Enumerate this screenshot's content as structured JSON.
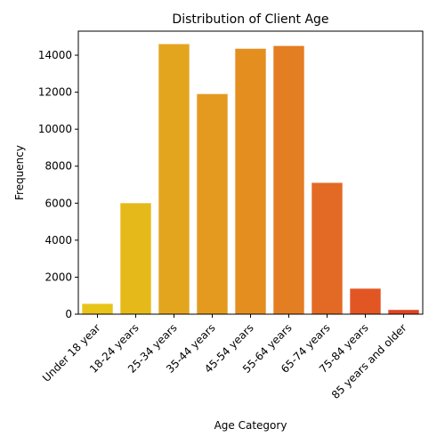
{
  "chart_data": {
    "type": "bar",
    "title": "Distribution of Client Age",
    "xlabel": "Age Category",
    "ylabel": "Frequency",
    "categories": [
      "Under 18 year",
      "18-24 years",
      "25-34 years",
      "35-44 years",
      "45-54 years",
      "55-64 years",
      "65-74 years",
      "75-84 years",
      "85 years and older"
    ],
    "values": [
      560,
      6000,
      14600,
      11900,
      14350,
      14500,
      7100,
      1380,
      230
    ],
    "colors": [
      "#e8c418",
      "#e5b91a",
      "#e4a51e",
      "#e39a1f",
      "#e48e20",
      "#e47e22",
      "#e36a24",
      "#e25624",
      "#e04420"
    ],
    "ylim": [
      0,
      15300
    ],
    "yticks": [
      0,
      2000,
      4000,
      6000,
      8000,
      10000,
      12000,
      14000
    ],
    "grid": false,
    "legend": "none"
  }
}
